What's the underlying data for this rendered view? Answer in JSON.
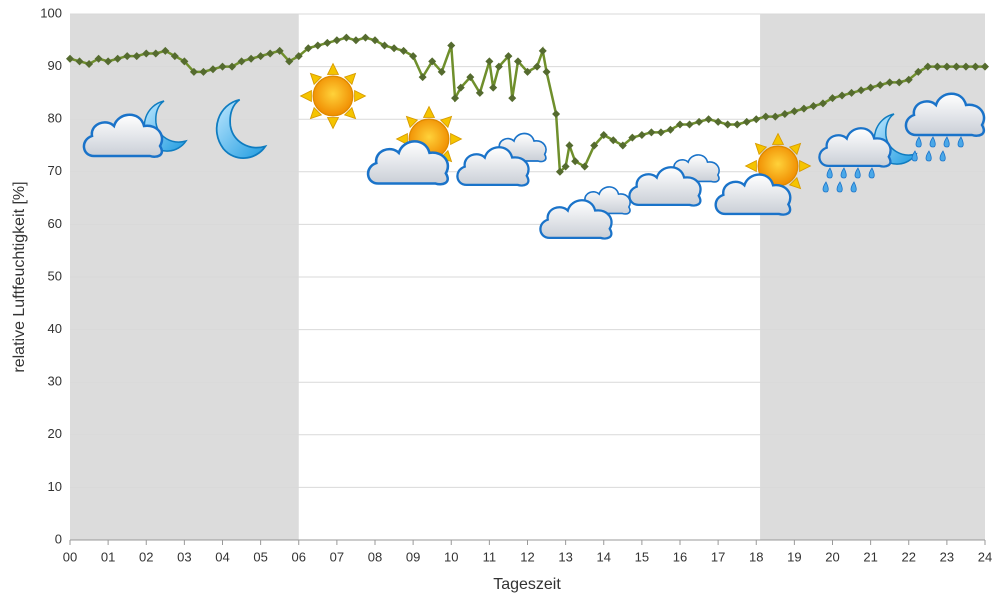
{
  "chart_data": {
    "type": "line",
    "y_label": "relative Luftfeuchtigkeit [%]",
    "x_label": "Tageszeit",
    "xlim": [
      0,
      24
    ],
    "ylim": [
      0,
      100
    ],
    "xticks": [
      {
        "value": 0,
        "label": "00"
      },
      {
        "value": 1,
        "label": "01"
      },
      {
        "value": 2,
        "label": "02"
      },
      {
        "value": 3,
        "label": "03"
      },
      {
        "value": 4,
        "label": "04"
      },
      {
        "value": 5,
        "label": "05"
      },
      {
        "value": 6,
        "label": "06"
      },
      {
        "value": 7,
        "label": "07"
      },
      {
        "value": 8,
        "label": "08"
      },
      {
        "value": 9,
        "label": "09"
      },
      10,
      11,
      12,
      13,
      14,
      15,
      16,
      17,
      18,
      19,
      20,
      21,
      22,
      23,
      24
    ],
    "yticks": [
      0,
      10,
      20,
      30,
      40,
      50,
      60,
      70,
      80,
      90,
      100
    ],
    "grid": true,
    "shaded_ranges": [
      [
        0,
        6
      ],
      [
        18.1,
        24
      ]
    ],
    "shade_color": "#dcdcdc",
    "series": [
      {
        "name": "relative Luftfeuchtigkeit",
        "color": "#6f8f2c",
        "marker_color": "#556b2f",
        "x": [
          0,
          0.25,
          0.5,
          0.75,
          1,
          1.25,
          1.5,
          1.75,
          2,
          2.25,
          2.5,
          2.75,
          3,
          3.25,
          3.5,
          3.75,
          4,
          4.25,
          4.5,
          4.75,
          5,
          5.25,
          5.5,
          5.75,
          6,
          6.25,
          6.5,
          6.75,
          7,
          7.25,
          7.5,
          7.75,
          8,
          8.25,
          8.5,
          8.75,
          9,
          9.25,
          9.5,
          9.75,
          10,
          10.1,
          10.25,
          10.5,
          10.75,
          11,
          11.1,
          11.25,
          11.5,
          11.6,
          11.75,
          12,
          12.25,
          12.4,
          12.5,
          12.75,
          12.85,
          13,
          13.1,
          13.25,
          13.5,
          13.75,
          14,
          14.25,
          14.5,
          14.75,
          15,
          15.25,
          15.5,
          15.75,
          16,
          16.25,
          16.5,
          16.75,
          17,
          17.25,
          17.5,
          17.75,
          18,
          18.25,
          18.5,
          18.75,
          19,
          19.25,
          19.5,
          19.75,
          20,
          20.25,
          20.5,
          20.75,
          21,
          21.25,
          21.5,
          21.75,
          22,
          22.25,
          22.5,
          22.75,
          23,
          23.25,
          23.5,
          23.75,
          24
        ],
        "values": [
          91.5,
          91,
          90.5,
          91.5,
          91,
          91.5,
          92,
          92,
          92.5,
          92.5,
          93,
          92,
          91,
          89,
          89,
          89.5,
          90,
          90,
          91,
          91.5,
          92,
          92.5,
          93,
          91,
          92,
          93.5,
          94,
          94.5,
          95,
          95.5,
          95,
          95.5,
          95,
          94,
          93.5,
          93,
          92,
          88,
          91,
          89,
          94,
          84,
          86,
          88,
          85,
          91,
          86,
          90,
          92,
          84,
          91,
          89,
          90,
          93,
          89,
          81,
          70,
          71,
          75,
          72,
          71,
          75,
          77,
          76,
          75,
          76.5,
          77,
          77.5,
          77.5,
          78,
          79,
          79,
          79.5,
          80,
          79.5,
          79,
          79,
          79.5,
          80,
          80.5,
          80.5,
          81,
          81.5,
          82,
          82.5,
          83,
          84,
          84.5,
          85,
          85.5,
          86,
          86.5,
          87,
          87,
          87.5,
          89,
          90,
          90,
          90,
          90,
          90,
          90,
          90
        ]
      }
    ]
  }
}
